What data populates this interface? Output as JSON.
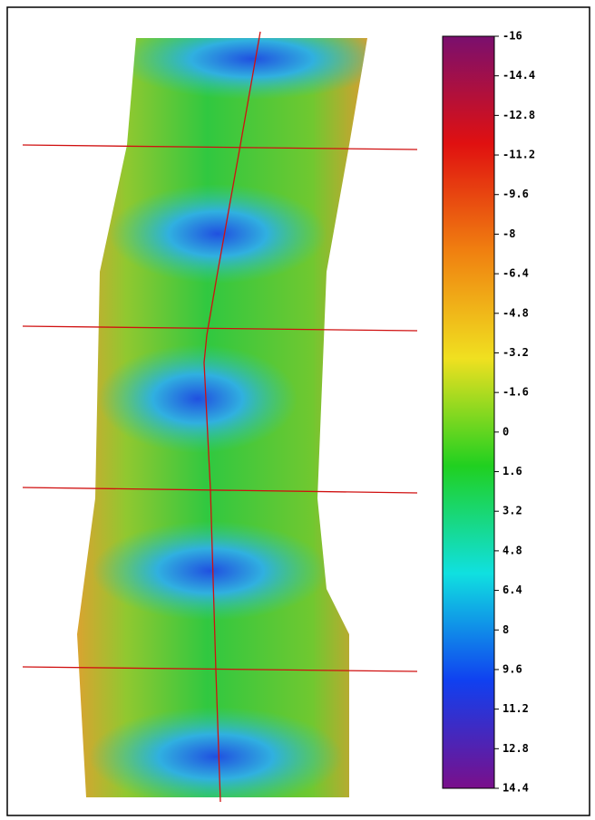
{
  "chart_data": {
    "type": "colorbar",
    "ylim": [
      -16,
      14.4
    ],
    "yticks": [
      -16,
      -14.4,
      -12.8,
      -11.2,
      -9.6,
      -8,
      -6.4,
      -4.8,
      -3.2,
      -1.6,
      0,
      1.6,
      3.2,
      4.8,
      6.4,
      8,
      9.6,
      11.2,
      12.8,
      14.4
    ],
    "colormap": [
      "#7a0f6e",
      "#e01010",
      "#f08010",
      "#f0e020",
      "#20d020",
      "#10e0e0",
      "#1040f0",
      "#7a0f8a"
    ]
  }
}
